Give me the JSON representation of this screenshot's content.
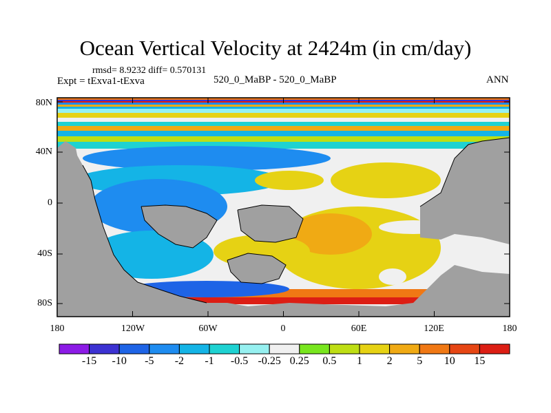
{
  "title": "Ocean Vertical Velocity at 2424m (in cm/day)",
  "stats": "rmsd= 8.9232 diff= 0.570131",
  "experiment": "Expt = tExva1-tExva",
  "case": "520_0_MaBP - 520_0_MaBP",
  "season": "ANN",
  "map_data": {
    "type": "filled-contour-map",
    "lon_range": [
      -180,
      180
    ],
    "lat_range": [
      -90,
      90
    ],
    "y_ticks": [
      "80N",
      "40N",
      "0",
      "40S",
      "80S"
    ],
    "x_ticks": [
      "180",
      "120W",
      "60W",
      "0",
      "60E",
      "120E",
      "180"
    ],
    "land_color": "#a0a0a0"
  },
  "colorbar": {
    "labels": [
      "-15",
      "-10",
      "-5",
      "-2",
      "-1",
      "-0.5",
      "-0.25",
      "0.25",
      "0.5",
      "1",
      "2",
      "5",
      "10",
      "15"
    ],
    "colors": [
      "#8c1be6",
      "#3c32d2",
      "#1e64e6",
      "#1e8cf0",
      "#14b4e6",
      "#1ed2d2",
      "#96f0f0",
      "#f0f0f0",
      "#78e61e",
      "#bede14",
      "#e6d214",
      "#f0aa14",
      "#f07814",
      "#e64614",
      "#dc1e14"
    ]
  }
}
